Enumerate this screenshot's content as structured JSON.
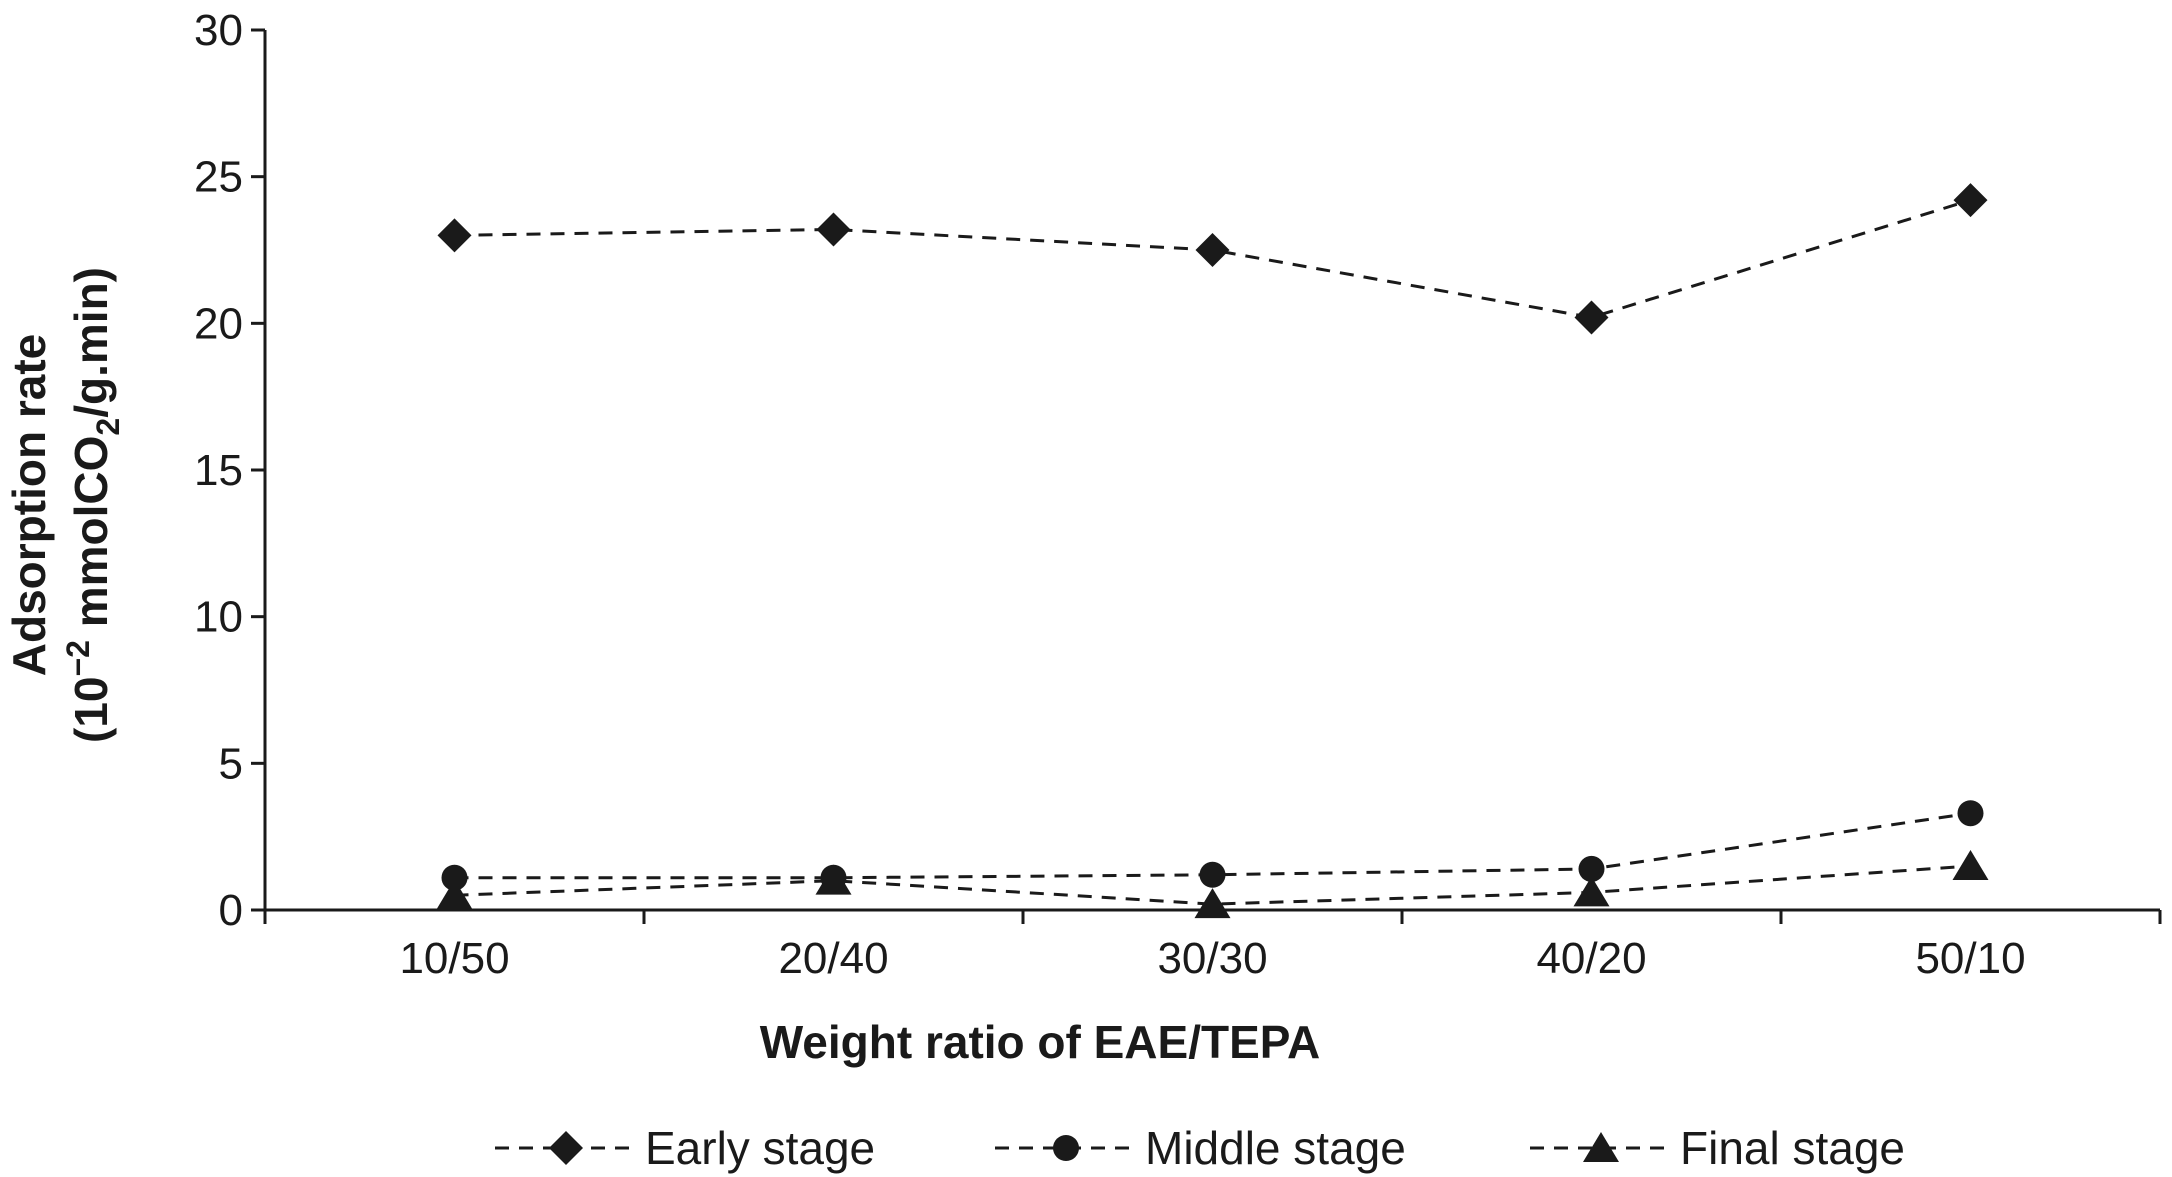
{
  "chart_data": {
    "type": "line",
    "categories": [
      "10/50",
      "20/40",
      "30/30",
      "40/20",
      "50/10"
    ],
    "series": [
      {
        "name": "Early stage",
        "marker": "diamond",
        "values": [
          23.0,
          23.2,
          22.5,
          20.2,
          24.2
        ]
      },
      {
        "name": "Middle stage",
        "marker": "circle",
        "values": [
          1.1,
          1.1,
          1.2,
          1.4,
          3.3
        ]
      },
      {
        "name": "Final stage",
        "marker": "triangle",
        "values": [
          0.5,
          1.0,
          0.2,
          0.6,
          1.5
        ]
      }
    ],
    "xlabel": "Weight ratio of EAE/TEPA",
    "ylabel_line1": "Adsorption rate",
    "ylabel_line2": {
      "prefix": "(10",
      "exp": "−2",
      "mid": " mmolCO",
      "sub": "2",
      "suffix": "/g.min)"
    },
    "ylim": [
      0,
      30
    ],
    "yticks": [
      0,
      5,
      10,
      15,
      20,
      25,
      30
    ],
    "legend_position": "bottom",
    "grid": false,
    "line_color": "#1a1a1a"
  }
}
